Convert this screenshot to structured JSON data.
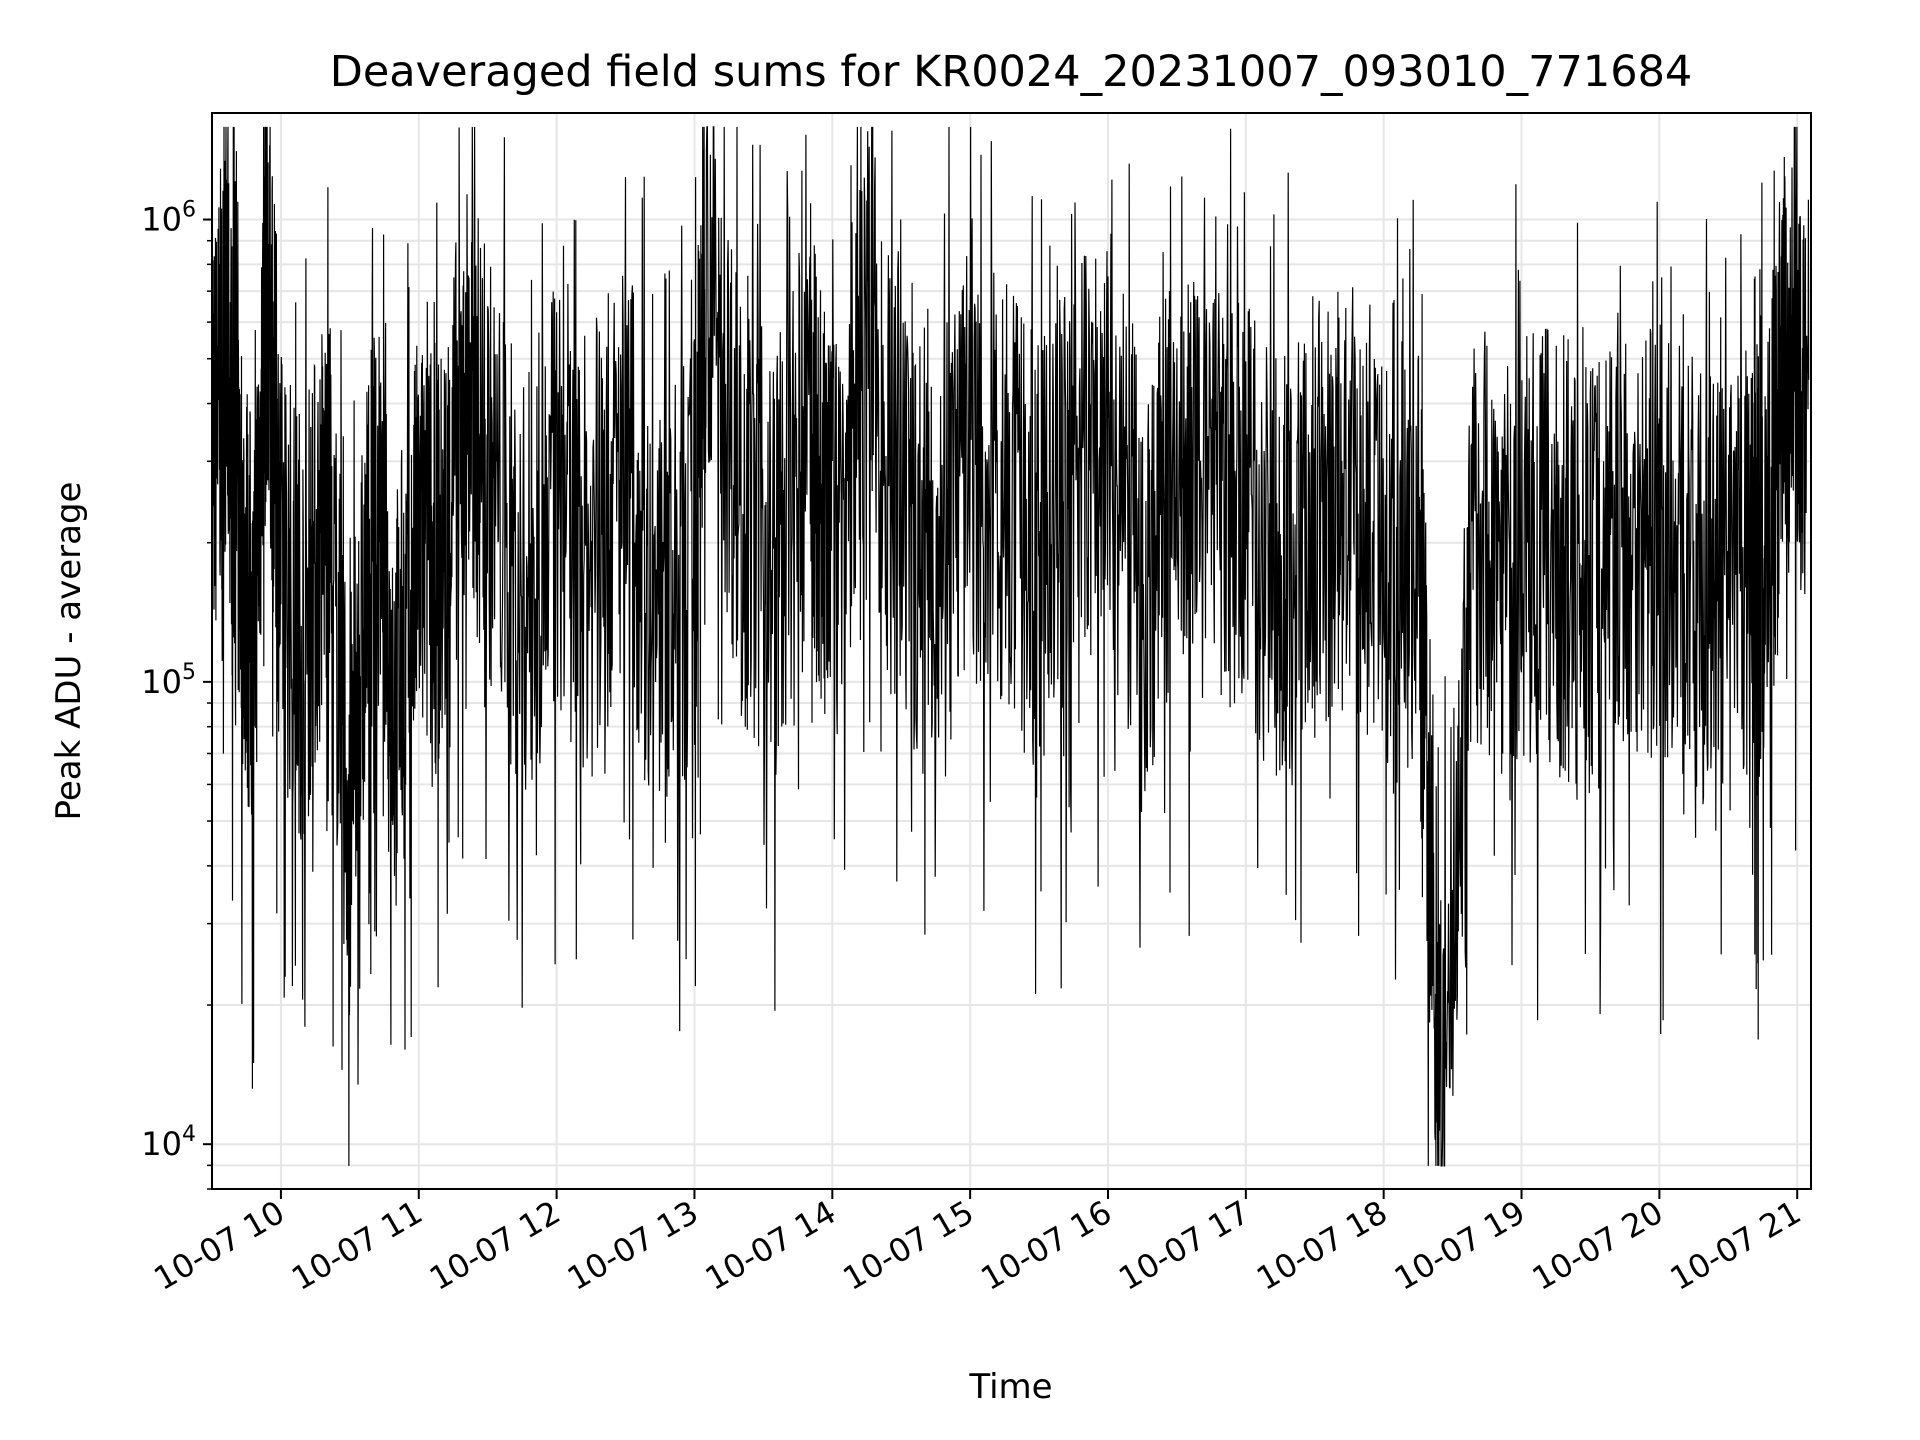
{
  "chart_data": {
    "type": "line",
    "title": "Deaveraged field sums for KR0024_20231007_093010_771684",
    "xlabel": "Time",
    "ylabel": "Peak ADU - average",
    "yscale": "log",
    "ylim": [
      8000,
      1700000
    ],
    "xlim": [
      "2023-10-07 09:30",
      "2023-10-07 21:06"
    ],
    "grid": true,
    "line_color": "#000000",
    "x_ticks": [
      "10-07 10",
      "10-07 11",
      "10-07 12",
      "10-07 13",
      "10-07 14",
      "10-07 15",
      "10-07 16",
      "10-07 17",
      "10-07 18",
      "10-07 19",
      "10-07 20",
      "10-07 21"
    ],
    "y_ticks": [
      {
        "value": 10000,
        "base": "10",
        "exp": "4"
      },
      {
        "value": 100000,
        "base": "10",
        "exp": "5"
      },
      {
        "value": 1000000,
        "base": "10",
        "exp": "6"
      }
    ],
    "series": [
      {
        "x": [
          "2023-10-07 09:30",
          "2023-10-07 09:36",
          "2023-10-07 09:42",
          "2023-10-07 09:48",
          "2023-10-07 09:54",
          "2023-10-07 10:00",
          "2023-10-07 10:10",
          "2023-10-07 10:20",
          "2023-10-07 10:30",
          "2023-10-07 10:40",
          "2023-10-07 10:50",
          "2023-10-07 11:00",
          "2023-10-07 11:10",
          "2023-10-07 11:20",
          "2023-10-07 11:30",
          "2023-10-07 11:45",
          "2023-10-07 12:00",
          "2023-10-07 12:15",
          "2023-10-07 12:30",
          "2023-10-07 12:45",
          "2023-10-07 13:00",
          "2023-10-07 13:05",
          "2023-10-07 13:20",
          "2023-10-07 13:35",
          "2023-10-07 13:50",
          "2023-10-07 14:00",
          "2023-10-07 14:15",
          "2023-10-07 14:30",
          "2023-10-07 14:45",
          "2023-10-07 15:00",
          "2023-10-07 15:15",
          "2023-10-07 15:30",
          "2023-10-07 15:45",
          "2023-10-07 16:00",
          "2023-10-07 16:15",
          "2023-10-07 16:30",
          "2023-10-07 16:45",
          "2023-10-07 17:00",
          "2023-10-07 17:15",
          "2023-10-07 17:30",
          "2023-10-07 17:45",
          "2023-10-07 18:00",
          "2023-10-07 18:15",
          "2023-10-07 18:25",
          "2023-10-07 18:40",
          "2023-10-07 18:55",
          "2023-10-07 19:10",
          "2023-10-07 19:25",
          "2023-10-07 19:40",
          "2023-10-07 19:55",
          "2023-10-07 20:10",
          "2023-10-07 20:25",
          "2023-10-07 20:40",
          "2023-10-07 20:46",
          "2023-10-07 20:55",
          "2023-10-07 21:05"
        ],
        "y": [
          300000,
          550000,
          220000,
          120000,
          800000,
          180000,
          130000,
          250000,
          50000,
          230000,
          90000,
          200000,
          180000,
          450000,
          300000,
          150000,
          250000,
          180000,
          300000,
          120000,
          200000,
          900000,
          250000,
          180000,
          350000,
          180000,
          600000,
          200000,
          220000,
          300000,
          250000,
          180000,
          280000,
          350000,
          150000,
          300000,
          250000,
          220000,
          180000,
          220000,
          250000,
          160000,
          200000,
          12000,
          220000,
          180000,
          200000,
          150000,
          230000,
          200000,
          180000,
          150000,
          160000,
          180000,
          500000,
          450000
        ]
      }
    ]
  }
}
